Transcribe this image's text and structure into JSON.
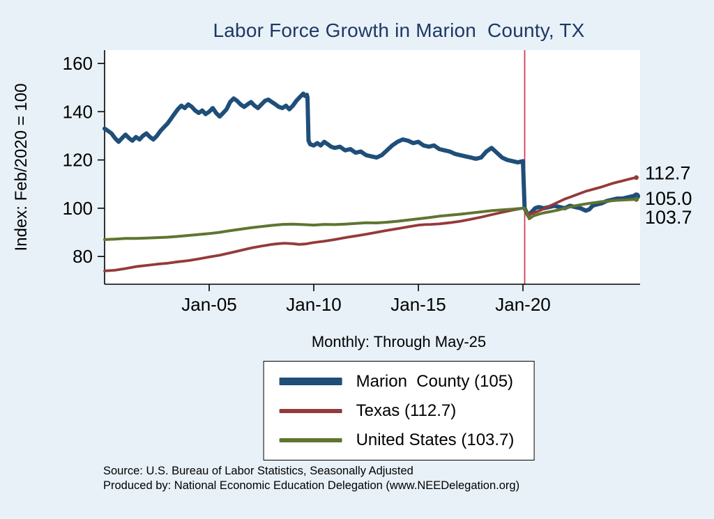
{
  "footer": {
    "source": "Source: U.S. Bureau of Labor Statistics, Seasonally Adjusted",
    "produced_by": "Produced by: National Economic Education Delegation (www.NEEDelegation.org)"
  },
  "legend": {
    "items": [
      {
        "label": "Marion  County (105)",
        "color": "#1f4e79",
        "thickness": 11
      },
      {
        "label": "Texas (112.7)",
        "color": "#943a3a",
        "thickness": 6
      },
      {
        "label": "United States (103.7)",
        "color": "#5f7530",
        "thickness": 6
      }
    ]
  },
  "chart_data": {
    "type": "line",
    "title": "Labor Force Growth in Marion  County, TX",
    "ylabel": "Index: Feb/2020 = 100",
    "xlabel": "",
    "note": "Monthly: Through May-25",
    "xlim": [
      2000.0,
      2025.6
    ],
    "ylim": [
      68.5,
      165.5
    ],
    "yticks": [
      80,
      100,
      120,
      140,
      160
    ],
    "xticks": [
      {
        "x": 2005,
        "label": "Jan-05"
      },
      {
        "x": 2010,
        "label": "Jan-10"
      },
      {
        "x": 2015,
        "label": "Jan-15"
      },
      {
        "x": 2020,
        "label": "Jan-20"
      }
    ],
    "vline": {
      "x": 2020.083,
      "color": "#cb4154",
      "meaning": "Feb-2020 index base"
    },
    "end_labels": [
      {
        "text": "112.7",
        "y": 114.5
      },
      {
        "text": "105.0",
        "y": 104.0
      },
      {
        "text": "103.7",
        "y": 96.2
      }
    ],
    "series": [
      {
        "name": "Marion  County (105)",
        "color": "#1f4e79",
        "width": 6,
        "points": [
          [
            2000.0,
            133
          ],
          [
            2000.17,
            132
          ],
          [
            2000.33,
            131
          ],
          [
            2000.5,
            129
          ],
          [
            2000.67,
            127.5
          ],
          [
            2000.83,
            129
          ],
          [
            2001.0,
            130.5
          ],
          [
            2001.17,
            129
          ],
          [
            2001.33,
            128
          ],
          [
            2001.5,
            129.5
          ],
          [
            2001.67,
            128.5
          ],
          [
            2001.83,
            130
          ],
          [
            2002.0,
            131
          ],
          [
            2002.17,
            129.5
          ],
          [
            2002.33,
            128.5
          ],
          [
            2002.5,
            130
          ],
          [
            2002.67,
            132
          ],
          [
            2002.83,
            133.5
          ],
          [
            2003.0,
            135
          ],
          [
            2003.17,
            137
          ],
          [
            2003.33,
            139
          ],
          [
            2003.5,
            141
          ],
          [
            2003.67,
            142.5
          ],
          [
            2003.83,
            141.5
          ],
          [
            2004.0,
            143
          ],
          [
            2004.17,
            142
          ],
          [
            2004.33,
            140.5
          ],
          [
            2004.5,
            139.5
          ],
          [
            2004.67,
            140.5
          ],
          [
            2004.83,
            139
          ],
          [
            2005.0,
            140
          ],
          [
            2005.17,
            141.5
          ],
          [
            2005.33,
            139.5
          ],
          [
            2005.5,
            138
          ],
          [
            2005.67,
            139.5
          ],
          [
            2005.83,
            141
          ],
          [
            2006.0,
            144
          ],
          [
            2006.17,
            145.5
          ],
          [
            2006.33,
            144.5
          ],
          [
            2006.5,
            143
          ],
          [
            2006.67,
            142
          ],
          [
            2006.83,
            143
          ],
          [
            2007.0,
            144
          ],
          [
            2007.17,
            142.5
          ],
          [
            2007.33,
            141.5
          ],
          [
            2007.5,
            143
          ],
          [
            2007.67,
            144.5
          ],
          [
            2007.83,
            145
          ],
          [
            2008.0,
            144
          ],
          [
            2008.17,
            143
          ],
          [
            2008.33,
            142
          ],
          [
            2008.5,
            141.5
          ],
          [
            2008.67,
            142.5
          ],
          [
            2008.83,
            141
          ],
          [
            2009.0,
            142.5
          ],
          [
            2009.17,
            144.5
          ],
          [
            2009.33,
            146
          ],
          [
            2009.5,
            147.5
          ],
          [
            2009.58,
            146.5
          ],
          [
            2009.67,
            147
          ],
          [
            2009.7,
            146
          ],
          [
            2009.75,
            128
          ],
          [
            2009.83,
            126.5
          ],
          [
            2010.0,
            126
          ],
          [
            2010.17,
            127
          ],
          [
            2010.33,
            126
          ],
          [
            2010.5,
            127.5
          ],
          [
            2010.67,
            126.5
          ],
          [
            2010.83,
            125.5
          ],
          [
            2011.0,
            125
          ],
          [
            2011.25,
            125.5
          ],
          [
            2011.5,
            124
          ],
          [
            2011.75,
            124.5
          ],
          [
            2012.0,
            123
          ],
          [
            2012.25,
            123.5
          ],
          [
            2012.5,
            122
          ],
          [
            2012.75,
            121.5
          ],
          [
            2013.0,
            121
          ],
          [
            2013.25,
            122
          ],
          [
            2013.5,
            124
          ],
          [
            2013.75,
            126
          ],
          [
            2014.0,
            127.5
          ],
          [
            2014.25,
            128.5
          ],
          [
            2014.5,
            128
          ],
          [
            2014.75,
            127
          ],
          [
            2015.0,
            127.5
          ],
          [
            2015.25,
            126
          ],
          [
            2015.5,
            125.5
          ],
          [
            2015.75,
            126
          ],
          [
            2016.0,
            124.5
          ],
          [
            2016.25,
            124
          ],
          [
            2016.5,
            123.5
          ],
          [
            2016.75,
            122.5
          ],
          [
            2017.0,
            122
          ],
          [
            2017.25,
            121.5
          ],
          [
            2017.5,
            121
          ],
          [
            2017.75,
            120.5
          ],
          [
            2018.0,
            121
          ],
          [
            2018.25,
            123.5
          ],
          [
            2018.5,
            125
          ],
          [
            2018.75,
            123
          ],
          [
            2019.0,
            121
          ],
          [
            2019.25,
            120
          ],
          [
            2019.5,
            119.5
          ],
          [
            2019.75,
            119
          ],
          [
            2020.0,
            119.5
          ],
          [
            2020.08,
            100
          ],
          [
            2020.25,
            97
          ],
          [
            2020.42,
            98.5
          ],
          [
            2020.58,
            100
          ],
          [
            2020.75,
            100.5
          ],
          [
            2021.0,
            100
          ],
          [
            2021.25,
            100.5
          ],
          [
            2021.5,
            101
          ],
          [
            2021.75,
            100.5
          ],
          [
            2022.0,
            100
          ],
          [
            2022.25,
            101
          ],
          [
            2022.5,
            100.5
          ],
          [
            2022.75,
            100
          ],
          [
            2023.0,
            99
          ],
          [
            2023.17,
            99.5
          ],
          [
            2023.33,
            101
          ],
          [
            2023.5,
            101.5
          ],
          [
            2023.75,
            102
          ],
          [
            2024.0,
            103
          ],
          [
            2024.25,
            103.5
          ],
          [
            2024.5,
            104
          ],
          [
            2024.75,
            104
          ],
          [
            2025.0,
            104.5
          ],
          [
            2025.25,
            105
          ],
          [
            2025.42,
            105
          ]
        ]
      },
      {
        "name": "Texas (112.7)",
        "color": "#943a3a",
        "width": 3.8,
        "points": [
          [
            2000.0,
            74
          ],
          [
            2000.5,
            74.3
          ],
          [
            2001.0,
            75
          ],
          [
            2001.5,
            75.8
          ],
          [
            2002.0,
            76.3
          ],
          [
            2002.5,
            76.8
          ],
          [
            2003.0,
            77.2
          ],
          [
            2003.5,
            77.8
          ],
          [
            2004.0,
            78.3
          ],
          [
            2004.5,
            79
          ],
          [
            2005.0,
            79.8
          ],
          [
            2005.5,
            80.5
          ],
          [
            2006.0,
            81.5
          ],
          [
            2006.5,
            82.5
          ],
          [
            2007.0,
            83.5
          ],
          [
            2007.5,
            84.3
          ],
          [
            2008.0,
            85
          ],
          [
            2008.3,
            85.3
          ],
          [
            2008.6,
            85.5
          ],
          [
            2009.0,
            85.3
          ],
          [
            2009.3,
            85
          ],
          [
            2009.6,
            85.2
          ],
          [
            2010.0,
            85.8
          ],
          [
            2010.5,
            86.3
          ],
          [
            2011.0,
            87
          ],
          [
            2011.5,
            87.8
          ],
          [
            2012.0,
            88.5
          ],
          [
            2012.5,
            89.2
          ],
          [
            2013.0,
            90
          ],
          [
            2013.5,
            90.8
          ],
          [
            2014.0,
            91.5
          ],
          [
            2014.5,
            92.3
          ],
          [
            2015.0,
            93
          ],
          [
            2015.3,
            93.2
          ],
          [
            2015.6,
            93.3
          ],
          [
            2016.0,
            93.5
          ],
          [
            2016.5,
            94
          ],
          [
            2017.0,
            94.6
          ],
          [
            2017.5,
            95.4
          ],
          [
            2018.0,
            96.3
          ],
          [
            2018.5,
            97.3
          ],
          [
            2019.0,
            98.3
          ],
          [
            2019.5,
            99.2
          ],
          [
            2020.0,
            100
          ],
          [
            2020.08,
            100
          ],
          [
            2020.3,
            97.3
          ],
          [
            2020.5,
            98
          ],
          [
            2020.75,
            98.8
          ],
          [
            2021.0,
            99.8
          ],
          [
            2021.25,
            100.8
          ],
          [
            2021.5,
            101.8
          ],
          [
            2021.75,
            102.8
          ],
          [
            2022.0,
            103.8
          ],
          [
            2022.25,
            104.6
          ],
          [
            2022.5,
            105.4
          ],
          [
            2022.75,
            106.2
          ],
          [
            2023.0,
            107
          ],
          [
            2023.25,
            107.6
          ],
          [
            2023.5,
            108.2
          ],
          [
            2023.75,
            108.8
          ],
          [
            2024.0,
            109.5
          ],
          [
            2024.25,
            110.2
          ],
          [
            2024.5,
            110.8
          ],
          [
            2024.75,
            111.3
          ],
          [
            2025.0,
            111.9
          ],
          [
            2025.25,
            112.4
          ],
          [
            2025.42,
            112.7
          ]
        ]
      },
      {
        "name": "United States (103.7)",
        "color": "#5f7530",
        "width": 4,
        "points": [
          [
            2000.0,
            87
          ],
          [
            2000.5,
            87.2
          ],
          [
            2001.0,
            87.5
          ],
          [
            2001.5,
            87.5
          ],
          [
            2002.0,
            87.6
          ],
          [
            2002.5,
            87.8
          ],
          [
            2003.0,
            88
          ],
          [
            2003.5,
            88.3
          ],
          [
            2004.0,
            88.7
          ],
          [
            2004.5,
            89.1
          ],
          [
            2005.0,
            89.5
          ],
          [
            2005.5,
            90
          ],
          [
            2006.0,
            90.7
          ],
          [
            2006.5,
            91.3
          ],
          [
            2007.0,
            91.9
          ],
          [
            2007.5,
            92.4
          ],
          [
            2008.0,
            92.9
          ],
          [
            2008.5,
            93.3
          ],
          [
            2009.0,
            93.4
          ],
          [
            2009.5,
            93.2
          ],
          [
            2010.0,
            93
          ],
          [
            2010.5,
            93.3
          ],
          [
            2011.0,
            93.2
          ],
          [
            2011.5,
            93.4
          ],
          [
            2012.0,
            93.7
          ],
          [
            2012.5,
            94
          ],
          [
            2013.0,
            93.9
          ],
          [
            2013.5,
            94.2
          ],
          [
            2014.0,
            94.6
          ],
          [
            2014.5,
            95.1
          ],
          [
            2015.0,
            95.6
          ],
          [
            2015.5,
            96.1
          ],
          [
            2016.0,
            96.7
          ],
          [
            2016.5,
            97.1
          ],
          [
            2017.0,
            97.5
          ],
          [
            2017.5,
            98
          ],
          [
            2018.0,
            98.5
          ],
          [
            2018.5,
            99
          ],
          [
            2019.0,
            99.3
          ],
          [
            2019.5,
            99.6
          ],
          [
            2020.0,
            100
          ],
          [
            2020.08,
            100
          ],
          [
            2020.3,
            95.6
          ],
          [
            2020.5,
            96.8
          ],
          [
            2020.75,
            97.5
          ],
          [
            2021.0,
            98.1
          ],
          [
            2021.25,
            98.5
          ],
          [
            2021.5,
            98.9
          ],
          [
            2021.75,
            99.4
          ],
          [
            2022.0,
            100
          ],
          [
            2022.25,
            100.5
          ],
          [
            2022.5,
            101
          ],
          [
            2022.75,
            101.4
          ],
          [
            2023.0,
            101.8
          ],
          [
            2023.25,
            102.1
          ],
          [
            2023.5,
            102.4
          ],
          [
            2023.75,
            102.7
          ],
          [
            2024.0,
            102.9
          ],
          [
            2024.25,
            103.1
          ],
          [
            2024.5,
            103.3
          ],
          [
            2024.75,
            103.4
          ],
          [
            2025.0,
            103.5
          ],
          [
            2025.25,
            103.6
          ],
          [
            2025.42,
            103.7
          ]
        ]
      }
    ]
  }
}
